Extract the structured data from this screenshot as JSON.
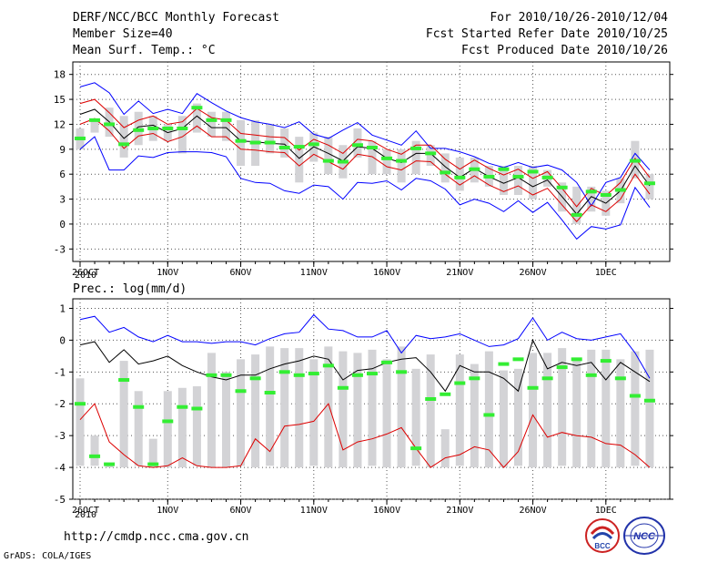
{
  "header": {
    "title": "DERF/NCC/BCC Monthly Forecast",
    "member_size": "Member Size=40",
    "period": "For 2010/10/26-2010/12/04",
    "fcst_started": "Fcst Started Refer Date 2010/10/25",
    "fcst_produced": "Fcst Produced Date 2010/10/26"
  },
  "footer": {
    "url": "http://cmdp.ncc.cma.gov.cn",
    "grads": "GrADS: COLA/IGES",
    "logo_bcc": "BCC",
    "logo_ncc": "NCC"
  },
  "colors": {
    "max_line": "#0000ff",
    "min_line": "#0000ff",
    "ensemble_line": "#000000",
    "spread_line": "#dd0000",
    "box": "#d3d3d6",
    "marker": "#33ee33",
    "axis": "#000000",
    "grid": "#555555"
  },
  "x_axis": {
    "ticks": [
      {
        "day": 0,
        "label": "26OCT"
      },
      {
        "day": 6,
        "label": "1NOV"
      },
      {
        "day": 11,
        "label": "6NOV"
      },
      {
        "day": 16,
        "label": "11NOV"
      },
      {
        "day": 21,
        "label": "16NOV"
      },
      {
        "day": 26,
        "label": "21NOV"
      },
      {
        "day": 31,
        "label": "26NOV"
      },
      {
        "day": 36,
        "label": "1DEC"
      }
    ],
    "year_label": "2010"
  },
  "chart_data": [
    {
      "type": "line",
      "title": "Mean Surf. Temp.: °C",
      "ylabel": "Mean Surf. Temp.: °C",
      "ylim": [
        -4.5,
        19.5
      ],
      "yticks": [
        -3,
        0,
        3,
        6,
        9,
        12,
        15,
        18
      ],
      "x_days": [
        0,
        1,
        2,
        3,
        4,
        5,
        6,
        7,
        8,
        9,
        10,
        11,
        12,
        13,
        14,
        15,
        16,
        17,
        18,
        19,
        20,
        21,
        22,
        23,
        24,
        25,
        26,
        27,
        28,
        29,
        30,
        31,
        32,
        33,
        34,
        35,
        36,
        37,
        38,
        39
      ],
      "series": [
        {
          "name": "max",
          "values": [
            16.5,
            17.0,
            15.8,
            13.2,
            14.8,
            13.3,
            13.8,
            13.3,
            15.7,
            14.6,
            13.6,
            12.8,
            12.3,
            12.0,
            11.6,
            12.3,
            10.8,
            10.3,
            11.3,
            12.2,
            10.7,
            10.1,
            9.5,
            11.2,
            9.1,
            9.1,
            8.7,
            8.1,
            7.3,
            6.8,
            7.4,
            6.8,
            7.1,
            6.5,
            5.0,
            2.2,
            5.0,
            5.6,
            8.5,
            6.5
          ]
        },
        {
          "name": "ensemble_mean",
          "values": [
            13.2,
            13.8,
            12.3,
            10.3,
            11.7,
            11.9,
            11.0,
            11.5,
            13.0,
            11.6,
            11.6,
            10.0,
            9.9,
            9.7,
            9.6,
            7.9,
            9.3,
            8.5,
            7.6,
            9.3,
            9.1,
            7.9,
            7.4,
            8.5,
            8.5,
            6.9,
            5.6,
            6.7,
            5.7,
            4.9,
            5.6,
            4.5,
            5.3,
            3.3,
            1.2,
            3.3,
            2.5,
            4.0,
            7.0,
            4.6
          ]
        },
        {
          "name": "mean_plus_sd",
          "values": [
            14.5,
            15.0,
            13.4,
            11.6,
            12.5,
            13.0,
            12.0,
            12.3,
            13.9,
            12.8,
            12.5,
            10.9,
            10.7,
            10.5,
            10.4,
            8.9,
            10.2,
            9.5,
            8.5,
            10.2,
            10.0,
            9.0,
            8.4,
            9.5,
            9.5,
            7.8,
            6.6,
            7.7,
            6.7,
            5.9,
            6.6,
            5.5,
            6.3,
            4.3,
            2.1,
            4.3,
            3.4,
            5.0,
            7.9,
            5.6
          ]
        },
        {
          "name": "mean_minus_sd",
          "values": [
            12.0,
            12.7,
            11.2,
            9.1,
            10.6,
            10.9,
            9.9,
            10.5,
            11.8,
            10.5,
            10.5,
            9.0,
            8.9,
            8.7,
            8.6,
            7.0,
            8.4,
            7.5,
            6.6,
            8.4,
            8.1,
            6.9,
            6.5,
            7.6,
            7.5,
            6.0,
            4.7,
            5.8,
            4.7,
            3.9,
            4.6,
            3.5,
            4.3,
            2.3,
            0.3,
            2.3,
            1.5,
            3.0,
            6.0,
            3.6
          ]
        },
        {
          "name": "min",
          "values": [
            9.0,
            10.5,
            6.5,
            6.5,
            8.2,
            8.0,
            8.6,
            8.7,
            8.7,
            8.6,
            8.1,
            5.5,
            5.0,
            4.9,
            4.0,
            3.7,
            4.7,
            4.5,
            3.0,
            5.0,
            4.9,
            5.2,
            4.1,
            5.5,
            5.2,
            4.2,
            2.3,
            3.0,
            2.5,
            1.5,
            2.8,
            1.4,
            2.6,
            0.5,
            -1.8,
            -0.3,
            -0.6,
            -0.1,
            4.4,
            2.0
          ]
        }
      ],
      "boxes": {
        "low": [
          9.0,
          11.0,
          10.5,
          8.0,
          9.5,
          10.0,
          10.0,
          8.5,
          11.0,
          10.5,
          10.0,
          7.0,
          7.0,
          8.5,
          8.0,
          5.0,
          7.5,
          6.0,
          5.5,
          8.0,
          6.0,
          6.0,
          5.0,
          6.0,
          7.0,
          5.0,
          4.0,
          5.0,
          4.5,
          3.5,
          3.5,
          3.0,
          4.5,
          1.5,
          0.0,
          1.5,
          1.0,
          2.5,
          5.5,
          3.0
        ],
        "high": [
          11.5,
          12.5,
          14.0,
          13.0,
          13.5,
          13.0,
          12.0,
          13.0,
          14.5,
          13.5,
          13.5,
          12.5,
          12.5,
          12.0,
          11.5,
          10.5,
          11.0,
          10.5,
          9.5,
          11.5,
          10.0,
          9.0,
          9.0,
          10.0,
          9.5,
          8.5,
          8.0,
          8.0,
          7.0,
          7.0,
          7.0,
          7.0,
          6.5,
          5.0,
          4.5,
          4.5,
          4.0,
          5.5,
          10.0,
          6.0
        ]
      },
      "markers": [
        10.3,
        12.5,
        12.0,
        9.6,
        11.3,
        11.5,
        11.5,
        11.5,
        14.0,
        12.5,
        12.5,
        10.0,
        9.8,
        9.8,
        9.2,
        9.3,
        9.6,
        7.6,
        7.5,
        9.5,
        9.2,
        7.9,
        7.6,
        9.1,
        8.5,
        6.2,
        5.6,
        6.6,
        5.7,
        6.6,
        5.7,
        6.3,
        5.6,
        4.4,
        1.1,
        3.9,
        3.5,
        4.1,
        7.6,
        4.9
      ]
    },
    {
      "type": "line",
      "title": "Prec.: log(mm/d)",
      "ylabel": "Prec.: log(mm/d)",
      "ylim": [
        -5,
        1.3
      ],
      "yticks": [
        -5,
        -4,
        -3,
        -2,
        -1,
        0,
        1
      ],
      "x_days": [
        0,
        1,
        2,
        3,
        4,
        5,
        6,
        7,
        8,
        9,
        10,
        11,
        12,
        13,
        14,
        15,
        16,
        17,
        18,
        19,
        20,
        21,
        22,
        23,
        24,
        25,
        26,
        27,
        28,
        29,
        30,
        31,
        32,
        33,
        34,
        35,
        36,
        37,
        38,
        39
      ],
      "series": [
        {
          "name": "max",
          "values": [
            0.65,
            0.75,
            0.25,
            0.4,
            0.1,
            -0.05,
            0.15,
            -0.05,
            -0.05,
            -0.1,
            -0.05,
            -0.05,
            -0.15,
            0.05,
            0.2,
            0.25,
            0.8,
            0.35,
            0.3,
            0.1,
            0.1,
            0.3,
            -0.4,
            0.15,
            0.05,
            0.1,
            0.2,
            0.0,
            -0.2,
            -0.15,
            0.05,
            0.7,
            0.0,
            0.25,
            0.05,
            0.0,
            0.1,
            0.2,
            -0.4,
            -1.2
          ]
        },
        {
          "name": "ensemble_mean",
          "values": [
            -0.15,
            -0.05,
            -0.7,
            -0.3,
            -0.75,
            -0.65,
            -0.5,
            -0.8,
            -1.0,
            -1.15,
            -1.25,
            -1.1,
            -1.1,
            -0.9,
            -0.75,
            -0.65,
            -0.5,
            -0.6,
            -1.25,
            -0.95,
            -0.9,
            -0.7,
            -0.6,
            -0.55,
            -1.0,
            -1.6,
            -0.8,
            -1.0,
            -1.0,
            -1.2,
            -1.6,
            0.0,
            -0.9,
            -0.7,
            -0.8,
            -0.7,
            -1.25,
            -0.7,
            -1.0,
            -1.3
          ]
        },
        {
          "name": "low_line",
          "values": [
            -2.5,
            -2.0,
            -3.2,
            -3.6,
            -3.95,
            -4.0,
            -3.95,
            -3.7,
            -3.95,
            -4.0,
            -4.0,
            -3.95,
            -3.1,
            -3.5,
            -2.7,
            -2.65,
            -2.55,
            -2.0,
            -3.45,
            -3.2,
            -3.1,
            -2.95,
            -2.75,
            -3.4,
            -4.0,
            -3.7,
            -3.6,
            -3.35,
            -3.45,
            -4.0,
            -3.5,
            -2.35,
            -3.05,
            -2.9,
            -3.0,
            -3.05,
            -3.25,
            -3.3,
            -3.6,
            -4.0
          ]
        }
      ],
      "boxes": {
        "low": [
          -3.95,
          -3.95,
          -4.0,
          -4.0,
          -3.95,
          -4.0,
          -4.0,
          -4.0,
          -3.95,
          -4.0,
          -4.0,
          -3.95,
          -4.0,
          -3.95,
          -4.0,
          -4.0,
          -3.95,
          -4.0,
          -4.0,
          -4.0,
          -3.95,
          -4.0,
          -4.0,
          -3.95,
          -4.0,
          -4.0,
          -3.95,
          -4.0,
          -4.0,
          -4.0,
          -3.95,
          -4.0,
          -4.0,
          -3.95,
          -4.0,
          -4.0,
          -4.0,
          -4.0,
          -3.95,
          -4.0
        ],
        "high": [
          -1.2,
          -3.0,
          -3.9,
          -0.65,
          -1.6,
          -3.1,
          -1.6,
          -1.5,
          -1.45,
          -0.4,
          -1.0,
          -0.6,
          -0.45,
          -0.2,
          -0.25,
          -0.25,
          -0.6,
          -0.2,
          -0.35,
          -0.4,
          -0.3,
          -0.6,
          -0.2,
          -0.9,
          -0.45,
          -2.8,
          -0.45,
          -0.75,
          -0.35,
          -0.95,
          -0.9,
          -0.4,
          -0.4,
          -0.25,
          -0.6,
          -0.3,
          -0.3,
          -0.6,
          -0.35,
          -0.3
        ]
      },
      "markers": [
        -2.0,
        -3.65,
        -3.9,
        -1.25,
        -2.1,
        -3.9,
        -2.55,
        -2.1,
        -2.15,
        -1.1,
        -1.1,
        -1.6,
        -1.2,
        -1.65,
        -1.0,
        -1.1,
        -1.05,
        -0.8,
        -1.5,
        -1.1,
        -1.05,
        -0.7,
        -1.0,
        -3.4,
        -1.85,
        -1.7,
        -1.35,
        -1.2,
        -2.35,
        -0.75,
        -0.6,
        -1.5,
        -1.2,
        -0.85,
        -0.6,
        -1.1,
        -0.65,
        -1.2,
        -1.75,
        -1.9
      ]
    }
  ]
}
